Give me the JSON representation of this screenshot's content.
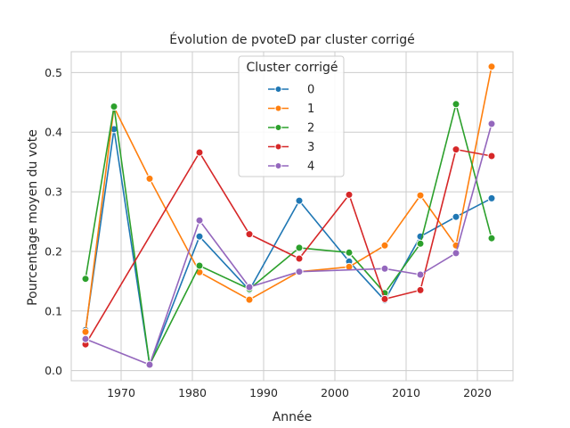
{
  "chart_data": {
    "type": "line",
    "title": "Évolution de pvoteD par cluster corrigé",
    "xlabel": "Année",
    "ylabel": "Pourcentage moyen du vote",
    "xlim": [
      1963,
      2025
    ],
    "ylim": [
      -0.017,
      0.535
    ],
    "x_ticks": [
      1970,
      1980,
      1990,
      2000,
      2010,
      2020
    ],
    "y_ticks": [
      0.0,
      0.1,
      0.2,
      0.3,
      0.4,
      0.5
    ],
    "y_tick_labels": [
      "0.0",
      "0.1",
      "0.2",
      "0.3",
      "0.4",
      "0.5"
    ],
    "grid": true,
    "legend": {
      "title": "Cluster corrigé",
      "placement": "top-center"
    },
    "x": [
      1965,
      1969,
      1974,
      1981,
      1988,
      1995,
      2002,
      2007,
      2012,
      2017,
      2022
    ],
    "series": [
      {
        "name": "0",
        "color": "#1f77b4",
        "values": [
          0.068,
          0.405,
          0.01,
          0.225,
          0.135,
          0.285,
          0.183,
          0.118,
          0.225,
          0.258,
          0.289
        ]
      },
      {
        "name": "1",
        "color": "#ff7f0e",
        "values": [
          0.065,
          0.442,
          0.322,
          0.165,
          0.119,
          0.166,
          0.174,
          0.21,
          0.294,
          0.21,
          0.51
        ]
      },
      {
        "name": "2",
        "color": "#2ca02c",
        "values": [
          0.154,
          0.443,
          0.01,
          0.176,
          0.137,
          0.206,
          0.198,
          0.13,
          0.213,
          0.447,
          0.222
        ]
      },
      {
        "name": "3",
        "color": "#d62728",
        "values": [
          0.044,
          null,
          null,
          0.366,
          0.229,
          0.188,
          0.295,
          0.12,
          0.135,
          0.371,
          0.36
        ]
      },
      {
        "name": "4",
        "color": "#9467bd",
        "values": [
          0.053,
          null,
          0.01,
          0.252,
          0.14,
          0.166,
          null,
          0.171,
          0.161,
          0.197,
          0.414
        ]
      }
    ]
  }
}
